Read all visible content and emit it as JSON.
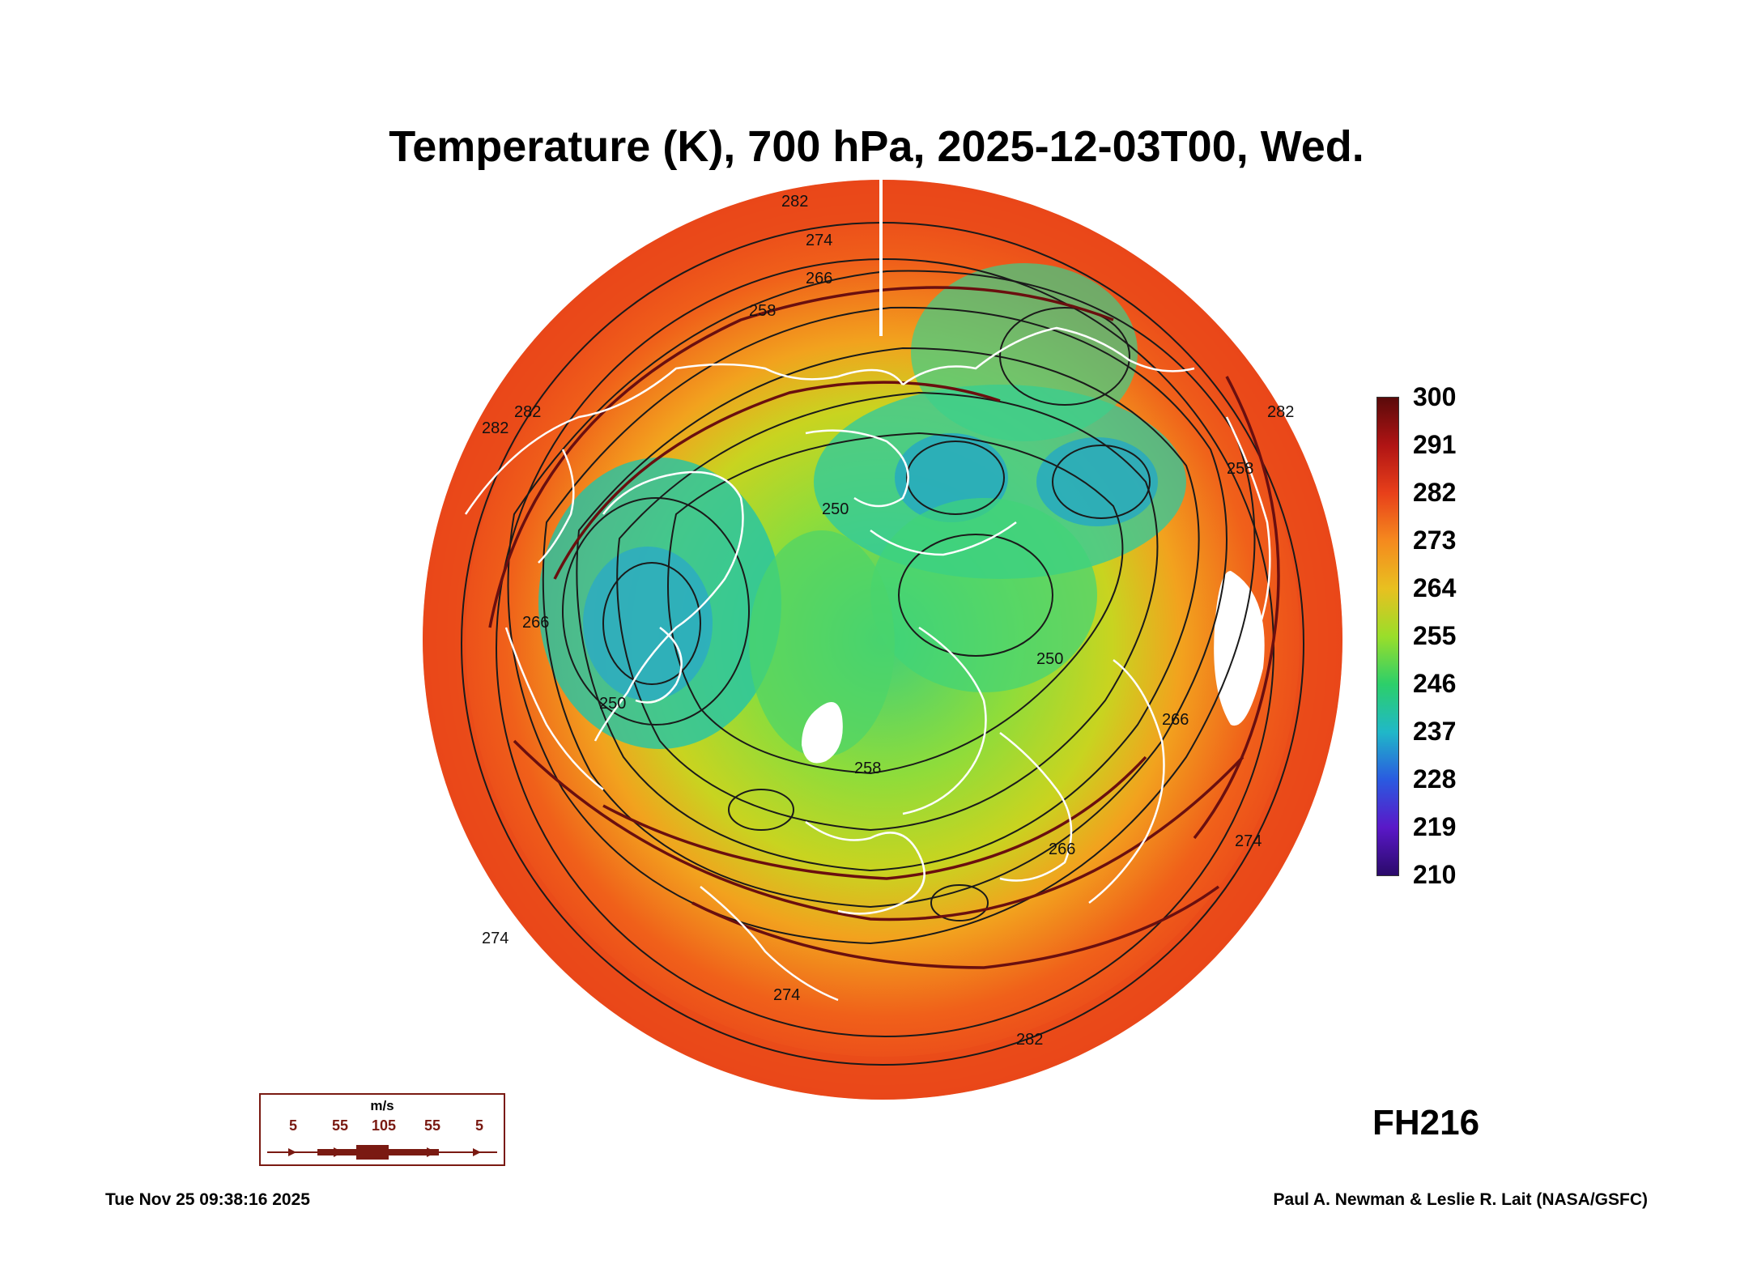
{
  "title": "Temperature (K), 700 hPa, 2025-12-03T00, Wed.",
  "forecast_hour": "FH216",
  "timestamp": "Tue Nov 25 09:38:16 2025",
  "credit": "Paul A. Newman & Leslie R. Lait (NASA/GSFC)",
  "colorbar": {
    "labels": [
      "300",
      "291",
      "282",
      "273",
      "264",
      "255",
      "246",
      "237",
      "228",
      "219",
      "210"
    ],
    "colors": [
      "#5a0a0a",
      "#b01414",
      "#e8401a",
      "#f58a1e",
      "#e8c020",
      "#9ade2a",
      "#2ccf6a",
      "#20b8c8",
      "#2a5ae0",
      "#5a18c8",
      "#2a0a6a"
    ]
  },
  "wind_legend": {
    "unit": "m/s",
    "values": [
      "5",
      "55",
      "105",
      "55",
      "5"
    ]
  },
  "contour_labels": [
    "282",
    "274",
    "266",
    "258",
    "250",
    "282",
    "282",
    "266",
    "250",
    "258",
    "266",
    "274",
    "282",
    "274",
    "282",
    "250",
    "258",
    "266",
    "274"
  ],
  "colors": {
    "coastline": "#ffffff",
    "contour": "#1a1a1a",
    "streamline": "#6a0f0f"
  }
}
